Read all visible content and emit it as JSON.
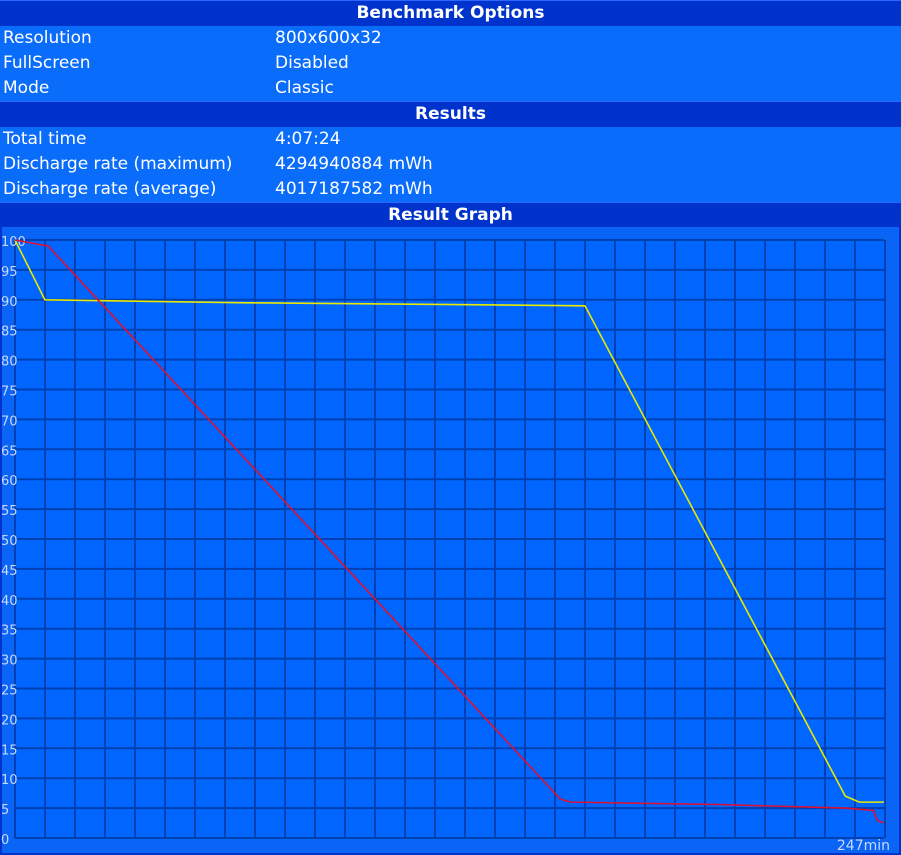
{
  "sections": {
    "options_title": "Benchmark Options",
    "options": [
      {
        "label": "Resolution",
        "value": "800x600x32"
      },
      {
        "label": "FullScreen",
        "value": "Disabled"
      },
      {
        "label": "Mode",
        "value": "Classic"
      }
    ],
    "results_title": "Results",
    "results": [
      {
        "label": "Total time",
        "value": "4:07:24"
      },
      {
        "label": "Discharge rate (maximum)",
        "value": "4294940884 mWh"
      },
      {
        "label": "Discharge rate (average)",
        "value": "4017187582 mWh"
      }
    ],
    "graph_title": "Result Graph"
  },
  "colors": {
    "background": "#0066ff",
    "grid": "#0040b0",
    "header": "#0033cc"
  },
  "chart_data": {
    "type": "line",
    "ylim": [
      0,
      100
    ],
    "xlim": [
      0,
      247
    ],
    "yticks": [
      "0",
      "5",
      "10",
      "15",
      "20",
      "25",
      "30",
      "35",
      "40",
      "45",
      "50",
      "55",
      "60",
      "65",
      "70",
      "75",
      "80",
      "85",
      "90",
      "95",
      "100"
    ],
    "x_end_label": "247min",
    "grid": true,
    "series": [
      {
        "color": "#e8e800",
        "x": [
          0,
          8.5,
          66,
          125,
          162,
          236,
          240,
          247
        ],
        "y": [
          100,
          90,
          89.5,
          89.2,
          89,
          7,
          6,
          6
        ]
      },
      {
        "color": "#dd1133",
        "x": [
          0,
          9.4,
          155,
          158,
          200,
          236,
          244,
          245,
          247
        ],
        "y": [
          100,
          99,
          6.5,
          6,
          5.6,
          5,
          4.6,
          3,
          2.5
        ]
      }
    ]
  }
}
